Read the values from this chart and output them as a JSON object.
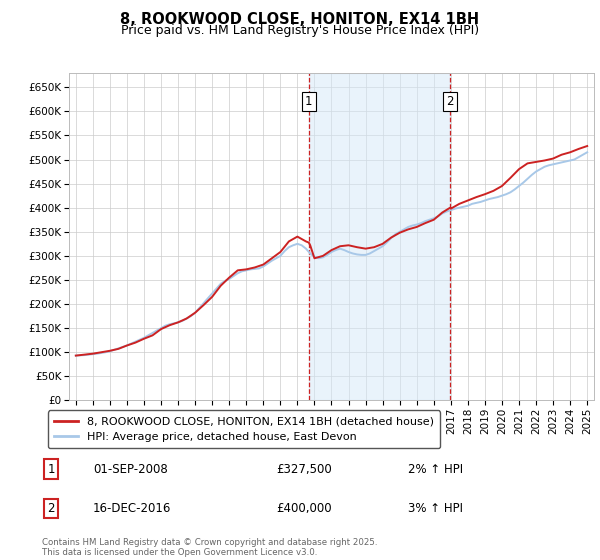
{
  "title": "8, ROOKWOOD CLOSE, HONITON, EX14 1BH",
  "subtitle": "Price paid vs. HM Land Registry's House Price Index (HPI)",
  "ylabel_ticks": [
    "£0",
    "£50K",
    "£100K",
    "£150K",
    "£200K",
    "£250K",
    "£300K",
    "£350K",
    "£400K",
    "£450K",
    "£500K",
    "£550K",
    "£600K",
    "£650K"
  ],
  "ytick_values": [
    0,
    50000,
    100000,
    150000,
    200000,
    250000,
    300000,
    350000,
    400000,
    450000,
    500000,
    550000,
    600000,
    650000
  ],
  "ylim": [
    0,
    680000
  ],
  "xlim_start": 1994.6,
  "xlim_end": 2025.4,
  "xtick_years": [
    1995,
    1996,
    1997,
    1998,
    1999,
    2000,
    2001,
    2002,
    2003,
    2004,
    2005,
    2006,
    2007,
    2008,
    2009,
    2010,
    2011,
    2012,
    2013,
    2014,
    2015,
    2016,
    2017,
    2018,
    2019,
    2020,
    2021,
    2022,
    2023,
    2024,
    2025
  ],
  "hpi_line_color": "#a8c8e8",
  "price_line_color": "#cc2222",
  "vline_color": "#cc2222",
  "vline_style": "--",
  "shade_color": "#d4e8f8",
  "shade_alpha": 0.5,
  "marker1_x": 2008.67,
  "marker1_y": 620000,
  "marker1_label": "1",
  "marker2_x": 2016.96,
  "marker2_y": 620000,
  "marker2_label": "2",
  "legend_label_price": "8, ROOKWOOD CLOSE, HONITON, EX14 1BH (detached house)",
  "legend_label_hpi": "HPI: Average price, detached house, East Devon",
  "annotation1_box": "1",
  "annotation1_date": "01-SEP-2008",
  "annotation1_price": "£327,500",
  "annotation1_hpi": "2% ↑ HPI",
  "annotation2_box": "2",
  "annotation2_date": "16-DEC-2016",
  "annotation2_price": "£400,000",
  "annotation2_hpi": "3% ↑ HPI",
  "footer": "Contains HM Land Registry data © Crown copyright and database right 2025.\nThis data is licensed under the Open Government Licence v3.0.",
  "background_color": "#ffffff",
  "grid_color": "#cccccc",
  "hpi_data_x": [
    1995.0,
    1995.25,
    1995.5,
    1995.75,
    1996.0,
    1996.25,
    1996.5,
    1996.75,
    1997.0,
    1997.25,
    1997.5,
    1997.75,
    1998.0,
    1998.25,
    1998.5,
    1998.75,
    1999.0,
    1999.25,
    1999.5,
    1999.75,
    2000.0,
    2000.25,
    2000.5,
    2000.75,
    2001.0,
    2001.25,
    2001.5,
    2001.75,
    2002.0,
    2002.25,
    2002.5,
    2002.75,
    2003.0,
    2003.25,
    2003.5,
    2003.75,
    2004.0,
    2004.25,
    2004.5,
    2004.75,
    2005.0,
    2005.25,
    2005.5,
    2005.75,
    2006.0,
    2006.25,
    2006.5,
    2006.75,
    2007.0,
    2007.25,
    2007.5,
    2007.75,
    2008.0,
    2008.25,
    2008.5,
    2008.75,
    2009.0,
    2009.25,
    2009.5,
    2009.75,
    2010.0,
    2010.25,
    2010.5,
    2010.75,
    2011.0,
    2011.25,
    2011.5,
    2011.75,
    2012.0,
    2012.25,
    2012.5,
    2012.75,
    2013.0,
    2013.25,
    2013.5,
    2013.75,
    2014.0,
    2014.25,
    2014.5,
    2014.75,
    2015.0,
    2015.25,
    2015.5,
    2015.75,
    2016.0,
    2016.25,
    2016.5,
    2016.75,
    2017.0,
    2017.25,
    2017.5,
    2017.75,
    2018.0,
    2018.25,
    2018.5,
    2018.75,
    2019.0,
    2019.25,
    2019.5,
    2019.75,
    2020.0,
    2020.25,
    2020.5,
    2020.75,
    2021.0,
    2021.25,
    2021.5,
    2021.75,
    2022.0,
    2022.25,
    2022.5,
    2022.75,
    2023.0,
    2023.25,
    2023.5,
    2023.75,
    2024.0,
    2024.25,
    2024.5,
    2024.75,
    2025.0
  ],
  "hpi_data_y": [
    93000,
    93500,
    94000,
    95000,
    96000,
    97000,
    98500,
    100000,
    102000,
    105000,
    108000,
    111000,
    114000,
    118000,
    122000,
    126000,
    130000,
    135000,
    140000,
    145000,
    150000,
    155000,
    158000,
    160000,
    162000,
    165000,
    170000,
    175000,
    182000,
    192000,
    202000,
    212000,
    222000,
    232000,
    242000,
    248000,
    252000,
    258000,
    264000,
    268000,
    270000,
    272000,
    273000,
    274000,
    278000,
    284000,
    290000,
    295000,
    300000,
    310000,
    318000,
    322000,
    325000,
    322000,
    315000,
    305000,
    298000,
    295000,
    297000,
    302000,
    308000,
    312000,
    315000,
    312000,
    308000,
    305000,
    303000,
    302000,
    302000,
    305000,
    310000,
    315000,
    320000,
    328000,
    337000,
    345000,
    350000,
    355000,
    360000,
    363000,
    365000,
    368000,
    372000,
    375000,
    378000,
    382000,
    388000,
    392000,
    395000,
    398000,
    400000,
    402000,
    404000,
    408000,
    410000,
    412000,
    415000,
    418000,
    420000,
    422000,
    425000,
    428000,
    432000,
    438000,
    445000,
    452000,
    460000,
    468000,
    475000,
    480000,
    485000,
    488000,
    490000,
    492000,
    494000,
    496000,
    498000,
    500000,
    505000,
    510000,
    515000
  ],
  "price_data_x": [
    1995.0,
    1995.5,
    1996.0,
    1996.5,
    1997.0,
    1997.5,
    1998.0,
    1998.5,
    1999.0,
    1999.5,
    2000.0,
    2000.5,
    2001.0,
    2001.5,
    2002.0,
    2002.5,
    2003.0,
    2003.5,
    2004.0,
    2004.5,
    2005.0,
    2005.5,
    2006.0,
    2006.5,
    2007.0,
    2007.5,
    2008.0,
    2008.5,
    2008.67,
    2008.75,
    2009.0,
    2009.5,
    2010.0,
    2010.5,
    2011.0,
    2011.5,
    2012.0,
    2012.5,
    2013.0,
    2013.5,
    2014.0,
    2014.5,
    2015.0,
    2015.5,
    2016.0,
    2016.5,
    2016.96,
    2017.0,
    2017.5,
    2018.0,
    2018.5,
    2019.0,
    2019.5,
    2020.0,
    2020.5,
    2021.0,
    2021.5,
    2022.0,
    2022.5,
    2023.0,
    2023.5,
    2024.0,
    2024.5,
    2025.0
  ],
  "price_data_y": [
    93000,
    95000,
    97000,
    100000,
    103000,
    107000,
    114000,
    120000,
    128000,
    135000,
    148000,
    156000,
    162000,
    170000,
    182000,
    198000,
    215000,
    238000,
    255000,
    270000,
    272000,
    276000,
    282000,
    295000,
    308000,
    330000,
    340000,
    330000,
    327500,
    322000,
    295000,
    300000,
    312000,
    320000,
    322000,
    318000,
    315000,
    318000,
    325000,
    338000,
    348000,
    355000,
    360000,
    368000,
    375000,
    390000,
    400000,
    398000,
    408000,
    415000,
    422000,
    428000,
    435000,
    445000,
    462000,
    480000,
    492000,
    495000,
    498000,
    502000,
    510000,
    515000,
    522000,
    528000
  ]
}
